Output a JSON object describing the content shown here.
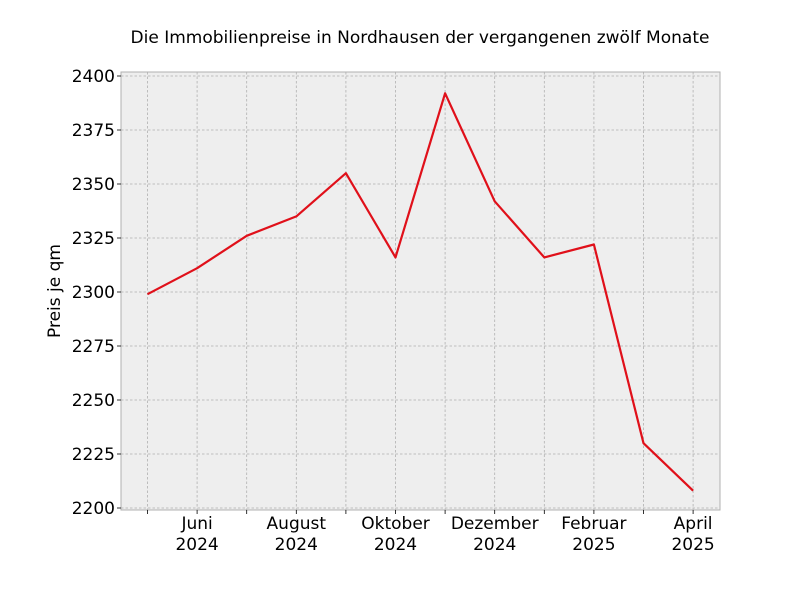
{
  "chart_data": {
    "type": "line",
    "title": "Die Immobilienpreise in Nordhausen der vergangenen zwölf Monate",
    "xlabel": "",
    "ylabel": "Preis je qm",
    "x": [
      "2024-05",
      "2024-06",
      "2024-07",
      "2024-08",
      "2024-09",
      "2024-10",
      "2024-11",
      "2024-12",
      "2025-01",
      "2025-02",
      "2025-03",
      "2025-04"
    ],
    "series": [
      {
        "values": [
          2299,
          2311,
          2326,
          2335,
          2355,
          2316,
          2392,
          2342,
          2316,
          2322,
          2230,
          2208
        ]
      }
    ],
    "ylim": [
      2200,
      2400
    ],
    "yticks": [
      "2200",
      "2225",
      "2250",
      "2275",
      "2300",
      "2325",
      "2350",
      "2375",
      "2400"
    ],
    "xtick_labels": [
      {
        "month": "Juni",
        "year": "2024",
        "at": "2024-06"
      },
      {
        "month": "August",
        "year": "2024",
        "at": "2024-08"
      },
      {
        "month": "Oktober",
        "year": "2024",
        "at": "2024-10"
      },
      {
        "month": "Dezember",
        "year": "2024",
        "at": "2024-12"
      },
      {
        "month": "Februar",
        "year": "2025",
        "at": "2025-02"
      },
      {
        "month": "April",
        "year": "2025",
        "at": "2025-04"
      }
    ],
    "grid": true,
    "line_color": "#e0101a",
    "plot_background": "#eeeeee"
  }
}
